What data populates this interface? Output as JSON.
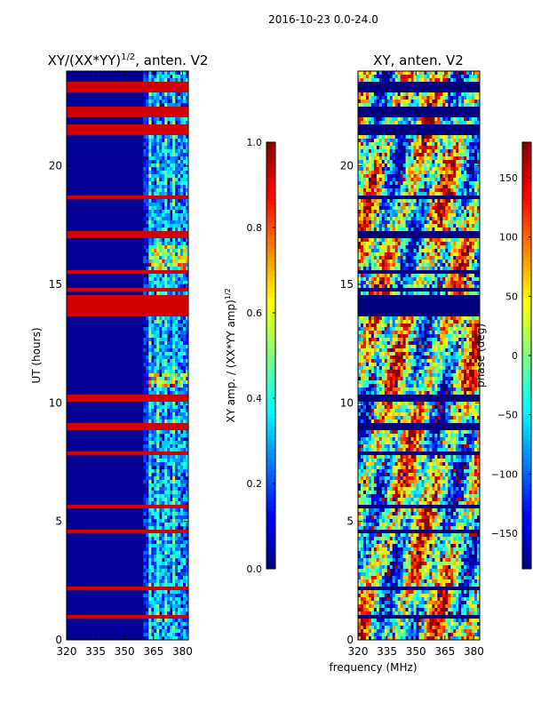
{
  "figure": {
    "suptitle": "2016-10-23 0.0-24.0",
    "xlabel_shared": "frequency (MHz)"
  },
  "colormap": "jet",
  "chart_data": [
    {
      "type": "heatmap",
      "title_main": "XY/(XX*YY)",
      "title_sup": "1/2",
      "title_tail": ", anten. V2",
      "xlabel": "",
      "ylabel": "UT (hours)",
      "xlim": [
        320,
        383
      ],
      "ylim": [
        0,
        24
      ],
      "xticks": [
        320,
        335,
        350,
        365,
        380
      ],
      "yticks": [
        0,
        5,
        10,
        15,
        20
      ],
      "colorbar": {
        "label_main": "XY amp. / (XX*YY amp)",
        "label_sup": "1/2",
        "range": [
          0.0,
          1.0
        ],
        "ticks": [
          0.0,
          0.2,
          0.4,
          0.6,
          0.8,
          1.0
        ],
        "tick_labels": [
          "0.0",
          "0.2",
          "0.4",
          "0.6",
          "0.8",
          "1.0"
        ]
      }
    },
    {
      "type": "heatmap",
      "title_main": "XY, anten. V2",
      "xlabel": "frequency (MHz)",
      "ylabel": "",
      "xlim": [
        320,
        383
      ],
      "ylim": [
        0,
        24
      ],
      "xticks": [
        320,
        335,
        350,
        365,
        380
      ],
      "yticks": [
        0,
        5,
        10,
        15,
        20
      ],
      "colorbar": {
        "label_main": "phase (deg)",
        "range": [
          -180,
          180
        ],
        "ticks": [
          -150,
          -100,
          -50,
          0,
          50,
          100,
          150
        ],
        "tick_labels": [
          "−150",
          "−100",
          "−50",
          "0",
          "50",
          "100",
          "150"
        ]
      }
    }
  ]
}
